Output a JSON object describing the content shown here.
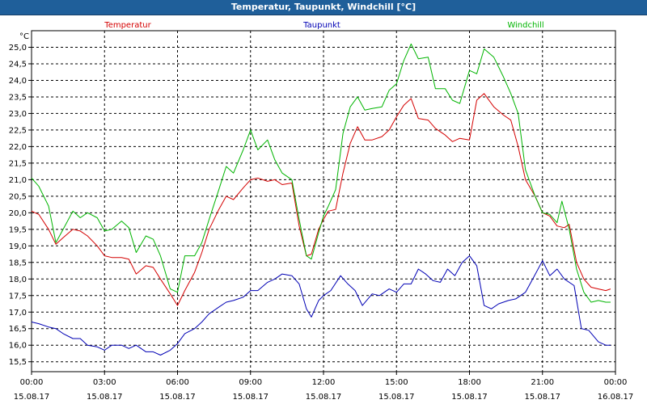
{
  "window": {
    "title": "Temperatur, Taupunkt, Windchill [°C]"
  },
  "chart_data": {
    "type": "line",
    "title": "Temperatur, Taupunkt, Windchill [°C]",
    "ylabel": "°C",
    "ylim": [
      15.2,
      25.5
    ],
    "yticks": [
      "15,5",
      "16,0",
      "16,5",
      "17,0",
      "17,5",
      "18,0",
      "18,5",
      "19,0",
      "19,5",
      "20,0",
      "20,5",
      "21,0",
      "21,5",
      "22,0",
      "22,5",
      "23,0",
      "23,5",
      "24,0",
      "24,5",
      "25,0"
    ],
    "xlim": [
      0,
      24
    ],
    "xticks": [
      {
        "time": "00:00",
        "date": "15.08.17"
      },
      {
        "time": "03:00",
        "date": "15.08.17"
      },
      {
        "time": "06:00",
        "date": "15.08.17"
      },
      {
        "time": "09:00",
        "date": "15.08.17"
      },
      {
        "time": "12:00",
        "date": "15.08.17"
      },
      {
        "time": "15:00",
        "date": "15.08.17"
      },
      {
        "time": "18:00",
        "date": "15.08.17"
      },
      {
        "time": "21:00",
        "date": "15.08.17"
      },
      {
        "time": "00:00",
        "date": "16.08.17"
      }
    ],
    "grid": true,
    "legend_position": "top",
    "series": [
      {
        "name": "Temperatur",
        "color": "#d40000",
        "points": [
          [
            0,
            20.05
          ],
          [
            0.3,
            19.95
          ],
          [
            0.7,
            19.5
          ],
          [
            1.0,
            19.05
          ],
          [
            1.3,
            19.25
          ],
          [
            1.7,
            19.5
          ],
          [
            2.0,
            19.45
          ],
          [
            2.3,
            19.3
          ],
          [
            2.7,
            19.0
          ],
          [
            3.0,
            18.7
          ],
          [
            3.3,
            18.65
          ],
          [
            3.7,
            18.65
          ],
          [
            4.0,
            18.6
          ],
          [
            4.3,
            18.15
          ],
          [
            4.7,
            18.4
          ],
          [
            5.0,
            18.35
          ],
          [
            5.3,
            18.0
          ],
          [
            5.7,
            17.55
          ],
          [
            6.0,
            17.2
          ],
          [
            6.3,
            17.65
          ],
          [
            6.7,
            18.2
          ],
          [
            7.0,
            18.8
          ],
          [
            7.3,
            19.5
          ],
          [
            7.7,
            20.1
          ],
          [
            8.0,
            20.5
          ],
          [
            8.3,
            20.4
          ],
          [
            8.7,
            20.75
          ],
          [
            9.0,
            21.0
          ],
          [
            9.3,
            21.05
          ],
          [
            9.7,
            20.95
          ],
          [
            10.0,
            21.0
          ],
          [
            10.3,
            20.85
          ],
          [
            10.7,
            20.9
          ],
          [
            11.0,
            19.6
          ],
          [
            11.3,
            18.7
          ],
          [
            11.5,
            18.75
          ],
          [
            11.8,
            19.5
          ],
          [
            12.0,
            19.8
          ],
          [
            12.2,
            20.05
          ],
          [
            12.5,
            20.1
          ],
          [
            12.8,
            21.2
          ],
          [
            13.1,
            22.1
          ],
          [
            13.4,
            22.6
          ],
          [
            13.7,
            22.2
          ],
          [
            14.0,
            22.2
          ],
          [
            14.4,
            22.3
          ],
          [
            14.7,
            22.5
          ],
          [
            15.0,
            22.9
          ],
          [
            15.3,
            23.25
          ],
          [
            15.6,
            23.45
          ],
          [
            15.9,
            22.85
          ],
          [
            16.3,
            22.8
          ],
          [
            16.6,
            22.55
          ],
          [
            17.0,
            22.35
          ],
          [
            17.3,
            22.15
          ],
          [
            17.6,
            22.25
          ],
          [
            18.0,
            22.2
          ],
          [
            18.3,
            23.4
          ],
          [
            18.6,
            23.6
          ],
          [
            19.0,
            23.2
          ],
          [
            19.4,
            22.95
          ],
          [
            19.7,
            22.8
          ],
          [
            20.0,
            22.0
          ],
          [
            20.3,
            21.0
          ],
          [
            20.7,
            20.5
          ],
          [
            21.0,
            20.0
          ],
          [
            21.3,
            19.9
          ],
          [
            21.6,
            19.6
          ],
          [
            21.9,
            19.55
          ],
          [
            22.1,
            19.65
          ],
          [
            22.4,
            18.5
          ],
          [
            22.7,
            18.0
          ],
          [
            23.0,
            17.75
          ],
          [
            23.3,
            17.7
          ],
          [
            23.6,
            17.65
          ],
          [
            23.8,
            17.7
          ]
        ]
      },
      {
        "name": "Taupunkt",
        "color": "#0000b4",
        "points": [
          [
            0,
            16.7
          ],
          [
            0.3,
            16.65
          ],
          [
            0.7,
            16.55
          ],
          [
            1.0,
            16.5
          ],
          [
            1.3,
            16.35
          ],
          [
            1.7,
            16.2
          ],
          [
            2.0,
            16.2
          ],
          [
            2.3,
            16.0
          ],
          [
            2.7,
            15.95
          ],
          [
            3.0,
            15.85
          ],
          [
            3.3,
            16.0
          ],
          [
            3.7,
            16.0
          ],
          [
            4.0,
            15.9
          ],
          [
            4.3,
            16.0
          ],
          [
            4.7,
            15.8
          ],
          [
            5.0,
            15.8
          ],
          [
            5.3,
            15.7
          ],
          [
            5.7,
            15.85
          ],
          [
            6.0,
            16.05
          ],
          [
            6.3,
            16.35
          ],
          [
            6.7,
            16.5
          ],
          [
            7.0,
            16.7
          ],
          [
            7.3,
            16.95
          ],
          [
            7.7,
            17.15
          ],
          [
            8.0,
            17.3
          ],
          [
            8.3,
            17.35
          ],
          [
            8.7,
            17.45
          ],
          [
            9.0,
            17.65
          ],
          [
            9.3,
            17.65
          ],
          [
            9.7,
            17.9
          ],
          [
            10.0,
            18.0
          ],
          [
            10.3,
            18.15
          ],
          [
            10.7,
            18.1
          ],
          [
            11.0,
            17.85
          ],
          [
            11.3,
            17.1
          ],
          [
            11.5,
            16.85
          ],
          [
            11.8,
            17.35
          ],
          [
            12.0,
            17.5
          ],
          [
            12.3,
            17.65
          ],
          [
            12.7,
            18.1
          ],
          [
            13.0,
            17.85
          ],
          [
            13.3,
            17.65
          ],
          [
            13.6,
            17.2
          ],
          [
            14.0,
            17.55
          ],
          [
            14.3,
            17.5
          ],
          [
            14.7,
            17.7
          ],
          [
            15.0,
            17.6
          ],
          [
            15.3,
            17.85
          ],
          [
            15.6,
            17.85
          ],
          [
            15.9,
            18.3
          ],
          [
            16.2,
            18.15
          ],
          [
            16.5,
            17.95
          ],
          [
            16.8,
            17.9
          ],
          [
            17.1,
            18.3
          ],
          [
            17.4,
            18.1
          ],
          [
            17.7,
            18.5
          ],
          [
            18.0,
            18.7
          ],
          [
            18.3,
            18.4
          ],
          [
            18.6,
            17.2
          ],
          [
            18.9,
            17.1
          ],
          [
            19.2,
            17.25
          ],
          [
            19.6,
            17.35
          ],
          [
            19.9,
            17.4
          ],
          [
            20.3,
            17.6
          ],
          [
            20.6,
            18.0
          ],
          [
            21.0,
            18.55
          ],
          [
            21.3,
            18.1
          ],
          [
            21.6,
            18.3
          ],
          [
            21.9,
            18.0
          ],
          [
            22.3,
            17.8
          ],
          [
            22.6,
            16.5
          ],
          [
            22.9,
            16.45
          ],
          [
            23.3,
            16.1
          ],
          [
            23.6,
            16.0
          ],
          [
            23.8,
            16.0
          ]
        ]
      },
      {
        "name": "Windchill",
        "color": "#00b400",
        "points": [
          [
            0,
            21.05
          ],
          [
            0.3,
            20.8
          ],
          [
            0.7,
            20.2
          ],
          [
            1.0,
            19.1
          ],
          [
            1.3,
            19.5
          ],
          [
            1.7,
            20.05
          ],
          [
            2.0,
            19.85
          ],
          [
            2.3,
            20.0
          ],
          [
            2.7,
            19.85
          ],
          [
            3.0,
            19.45
          ],
          [
            3.3,
            19.5
          ],
          [
            3.7,
            19.75
          ],
          [
            4.0,
            19.55
          ],
          [
            4.3,
            18.8
          ],
          [
            4.7,
            19.3
          ],
          [
            5.0,
            19.2
          ],
          [
            5.3,
            18.7
          ],
          [
            5.7,
            17.7
          ],
          [
            6.0,
            17.6
          ],
          [
            6.3,
            18.7
          ],
          [
            6.7,
            18.7
          ],
          [
            7.0,
            19.1
          ],
          [
            7.3,
            19.8
          ],
          [
            7.7,
            20.7
          ],
          [
            8.0,
            21.4
          ],
          [
            8.3,
            21.2
          ],
          [
            8.7,
            21.9
          ],
          [
            9.0,
            22.5
          ],
          [
            9.3,
            21.9
          ],
          [
            9.7,
            22.2
          ],
          [
            10.0,
            21.6
          ],
          [
            10.3,
            21.2
          ],
          [
            10.7,
            21.0
          ],
          [
            11.0,
            19.8
          ],
          [
            11.3,
            18.7
          ],
          [
            11.5,
            18.6
          ],
          [
            11.8,
            19.4
          ],
          [
            12.0,
            19.9
          ],
          [
            12.2,
            20.2
          ],
          [
            12.5,
            20.7
          ],
          [
            12.8,
            22.4
          ],
          [
            13.1,
            23.2
          ],
          [
            13.4,
            23.5
          ],
          [
            13.7,
            23.1
          ],
          [
            14.0,
            23.15
          ],
          [
            14.4,
            23.2
          ],
          [
            14.7,
            23.7
          ],
          [
            15.0,
            23.9
          ],
          [
            15.3,
            24.6
          ],
          [
            15.6,
            25.1
          ],
          [
            15.9,
            24.65
          ],
          [
            16.3,
            24.7
          ],
          [
            16.6,
            23.75
          ],
          [
            17.0,
            23.75
          ],
          [
            17.3,
            23.4
          ],
          [
            17.6,
            23.3
          ],
          [
            18.0,
            24.3
          ],
          [
            18.3,
            24.2
          ],
          [
            18.6,
            24.95
          ],
          [
            19.0,
            24.7
          ],
          [
            19.4,
            24.1
          ],
          [
            19.7,
            23.6
          ],
          [
            20.0,
            23.0
          ],
          [
            20.3,
            21.3
          ],
          [
            20.7,
            20.5
          ],
          [
            21.0,
            20.0
          ],
          [
            21.3,
            19.95
          ],
          [
            21.6,
            19.7
          ],
          [
            21.8,
            20.35
          ],
          [
            22.1,
            19.5
          ],
          [
            22.4,
            18.3
          ],
          [
            22.7,
            17.6
          ],
          [
            23.0,
            17.3
          ],
          [
            23.3,
            17.35
          ],
          [
            23.6,
            17.3
          ],
          [
            23.8,
            17.3
          ]
        ]
      }
    ]
  }
}
